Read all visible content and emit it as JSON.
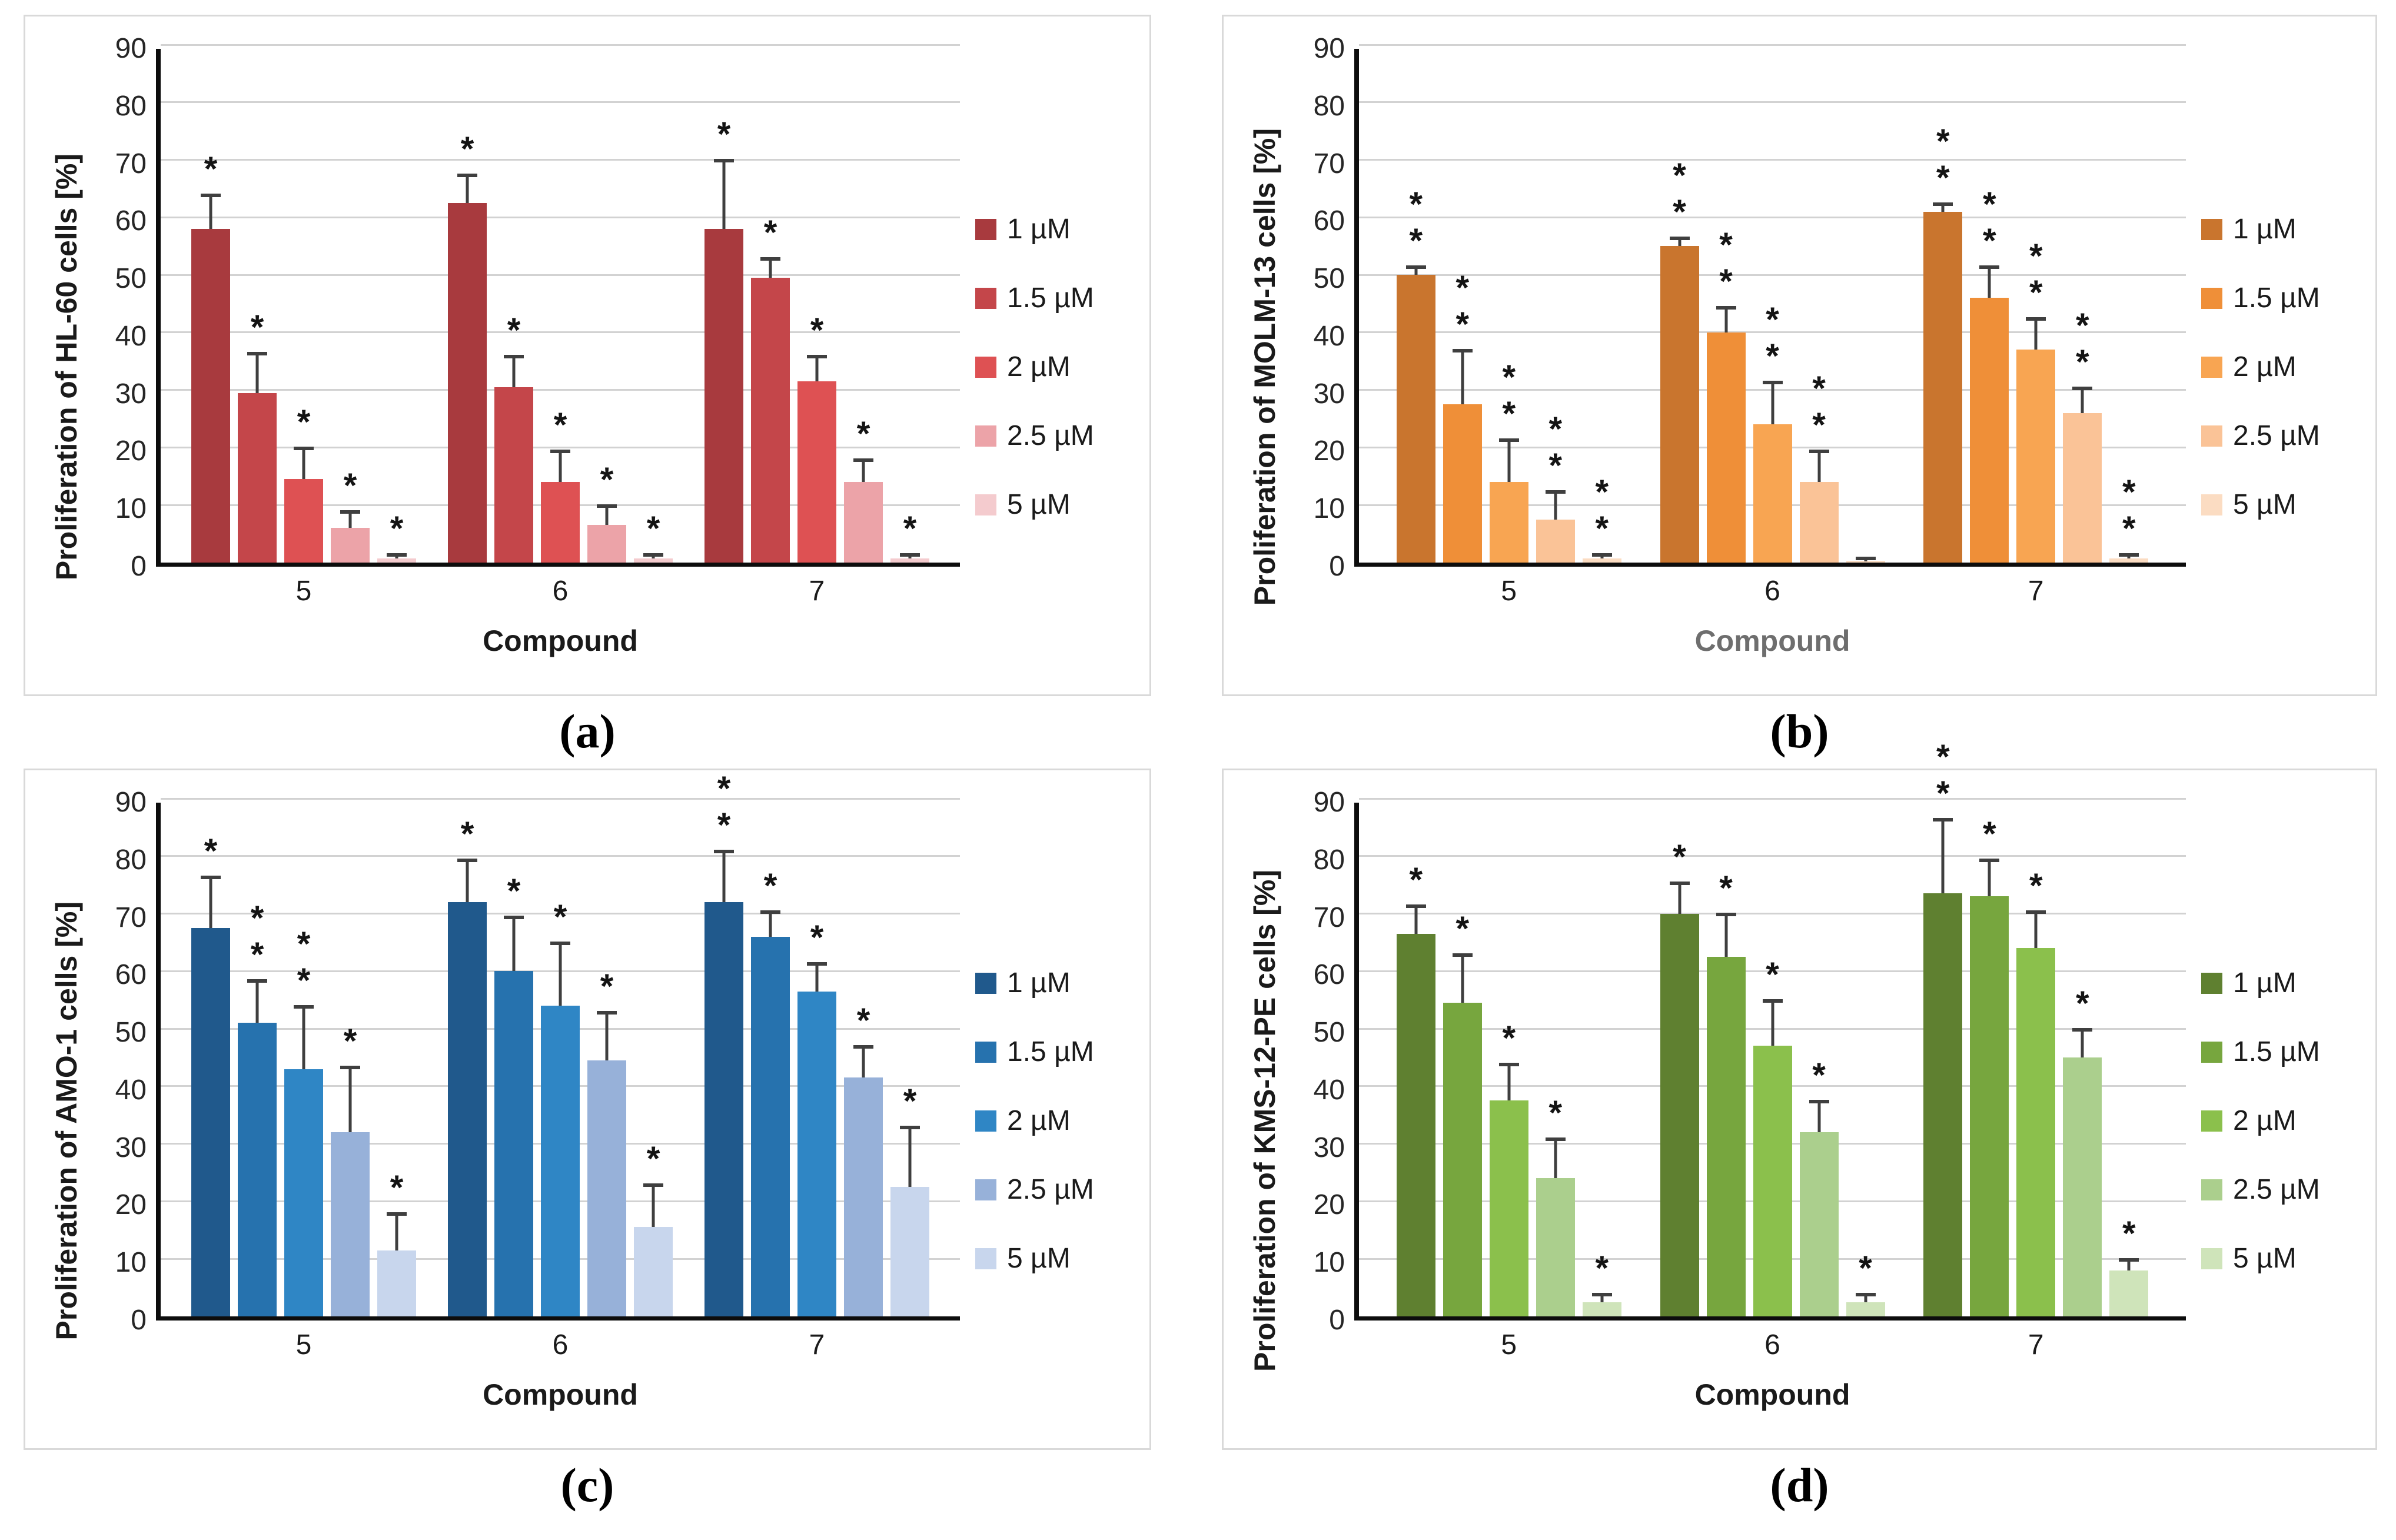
{
  "chart_data": [
    {
      "id": "a",
      "type": "bar",
      "letter": "(a)",
      "title": "",
      "ylabel": "Proliferation of HL-60 cells [%]",
      "xlabel": "Compound",
      "xlabel_color": "#1a1a1a",
      "ylim": [
        0,
        90
      ],
      "yticks": [
        0,
        10,
        20,
        30,
        40,
        50,
        60,
        70,
        80,
        90
      ],
      "grid": true,
      "legend_position": "right",
      "categories": [
        "5",
        "6",
        "7"
      ],
      "series": [
        {
          "name": "1 µM",
          "color": "#A83A3E"
        },
        {
          "name": "1.5 µM",
          "color": "#C4464A"
        },
        {
          "name": "2 µM",
          "color": "#DE5153"
        },
        {
          "name": "2.5 µM",
          "color": "#ECA3A8"
        },
        {
          "name": "5 µM",
          "color": "#F4CBCE"
        }
      ],
      "values": [
        [
          58,
          29.5,
          14.5,
          6,
          0.7
        ],
        [
          62.5,
          30.5,
          14,
          6.5,
          0.7
        ],
        [
          58,
          49.5,
          31.5,
          14,
          0.7
        ]
      ],
      "errors": [
        [
          5.5,
          6.5,
          5,
          2.5,
          0.3
        ],
        [
          4.5,
          5,
          5,
          3,
          0.3
        ],
        [
          11.5,
          3,
          4,
          3.5,
          0.3
        ]
      ],
      "significance": [
        [
          "*",
          "*",
          "*",
          "*",
          "*"
        ],
        [
          "*",
          "*",
          "*",
          "*",
          "*"
        ],
        [
          "*",
          "*",
          "*",
          "*",
          "*"
        ]
      ]
    },
    {
      "id": "b",
      "type": "bar",
      "letter": "(b)",
      "title": "",
      "ylabel": "Proliferation of MOLM-13 cells [%]",
      "xlabel": "Compound",
      "xlabel_color": "#6e6e6e",
      "ylim": [
        0,
        90
      ],
      "yticks": [
        0,
        10,
        20,
        30,
        40,
        50,
        60,
        70,
        80,
        90
      ],
      "grid": true,
      "legend_position": "right",
      "categories": [
        "5",
        "6",
        "7"
      ],
      "series": [
        {
          "name": "1 µM",
          "color": "#C9752E"
        },
        {
          "name": "1.5 µM",
          "color": "#EF8F38"
        },
        {
          "name": "2 µM",
          "color": "#F8A552"
        },
        {
          "name": "2.5 µM",
          "color": "#FAC397"
        },
        {
          "name": "5 µM",
          "color": "#FBDCC2"
        }
      ],
      "values": [
        [
          50,
          27.5,
          14,
          7.5,
          0.7
        ],
        [
          55,
          40,
          24,
          14,
          0.2
        ],
        [
          61,
          46,
          37,
          26,
          0.7
        ]
      ],
      "errors": [
        [
          1,
          9,
          7,
          4.5,
          0.3
        ],
        [
          1,
          4,
          7,
          5,
          0.2
        ],
        [
          1,
          5,
          5,
          4,
          0.3
        ]
      ],
      "significance": [
        [
          "**",
          "**",
          "**",
          "**",
          "**"
        ],
        [
          "**",
          "**",
          "**",
          "**",
          ""
        ],
        [
          "**",
          "**",
          "**",
          "**",
          "**"
        ]
      ]
    },
    {
      "id": "c",
      "type": "bar",
      "letter": "(c)",
      "title": "",
      "ylabel": "Proliferation of AMO-1 cells [%]",
      "xlabel": "Compound",
      "xlabel_color": "#1a1a1a",
      "ylim": [
        0,
        90
      ],
      "yticks": [
        0,
        10,
        20,
        30,
        40,
        50,
        60,
        70,
        80,
        90
      ],
      "grid": true,
      "legend_position": "right",
      "categories": [
        "5",
        "6",
        "7"
      ],
      "series": [
        {
          "name": "1 µM",
          "color": "#20598C"
        },
        {
          "name": "1.5 µM",
          "color": "#2672AE"
        },
        {
          "name": "2 µM",
          "color": "#2F86C5"
        },
        {
          "name": "2.5 µM",
          "color": "#97B1D9"
        },
        {
          "name": "5 µM",
          "color": "#C8D6ED"
        }
      ],
      "values": [
        [
          67.5,
          51,
          43,
          32,
          11.5
        ],
        [
          72,
          60,
          54,
          44.5,
          15.5
        ],
        [
          72,
          66,
          56.5,
          41.5,
          22.5
        ]
      ],
      "errors": [
        [
          8.5,
          7,
          10.5,
          11,
          6
        ],
        [
          7,
          9,
          10.5,
          8,
          7
        ],
        [
          8.5,
          4,
          4.5,
          5,
          10
        ]
      ],
      "significance": [
        [
          "*",
          "**",
          "**",
          "*",
          "*"
        ],
        [
          "*",
          "*",
          "*",
          "*",
          "*"
        ],
        [
          "**",
          "*",
          "*",
          "*",
          "*"
        ]
      ]
    },
    {
      "id": "d",
      "type": "bar",
      "letter": "(d)",
      "title": "",
      "ylabel": "Proliferation of KMS-12-PE cells [%]",
      "xlabel": "Compound",
      "xlabel_color": "#1a1a1a",
      "ylim": [
        0,
        90
      ],
      "yticks": [
        0,
        10,
        20,
        30,
        40,
        50,
        60,
        70,
        80,
        90
      ],
      "grid": true,
      "legend_position": "right",
      "categories": [
        "5",
        "6",
        "7"
      ],
      "series": [
        {
          "name": "1 µM",
          "color": "#5F8030"
        },
        {
          "name": "1.5 µM",
          "color": "#77A63E"
        },
        {
          "name": "2 µM",
          "color": "#8BC04C"
        },
        {
          "name": "2.5 µM",
          "color": "#ABCF8D"
        },
        {
          "name": "5 µM",
          "color": "#CFE4BA"
        }
      ],
      "values": [
        [
          66.5,
          54.5,
          37.5,
          24,
          2.5
        ],
        [
          70,
          62.5,
          47,
          32,
          2.5
        ],
        [
          73.5,
          73,
          64,
          45,
          8
        ]
      ],
      "errors": [
        [
          4.5,
          8,
          6,
          6.5,
          1
        ],
        [
          5,
          7,
          7.5,
          5,
          1
        ],
        [
          12.5,
          6,
          6,
          4.5,
          1.5
        ]
      ],
      "significance": [
        [
          "*",
          "*",
          "*",
          "*",
          "*"
        ],
        [
          "*",
          "*",
          "*",
          "*",
          "*"
        ],
        [
          "**",
          "*",
          "*",
          "*",
          "*"
        ]
      ]
    }
  ]
}
